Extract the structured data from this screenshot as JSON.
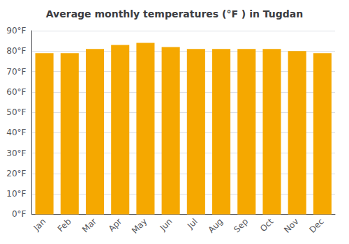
{
  "chart_data": {
    "type": "bar",
    "title": "Average monthly temperatures (°F ) in Tugdan",
    "categories": [
      "Jan",
      "Feb",
      "Mar",
      "Apr",
      "May",
      "Jun",
      "Jul",
      "Aug",
      "Sep",
      "Oct",
      "Nov",
      "Dec"
    ],
    "values": [
      79,
      79,
      81,
      83,
      84,
      82,
      81,
      81,
      81,
      81,
      80,
      79
    ],
    "color": "#F5A800",
    "ylim": [
      0,
      90
    ],
    "yticks": [
      {
        "value": 0,
        "label": "0°F"
      },
      {
        "value": 10,
        "label": "10°F"
      },
      {
        "value": 20,
        "label": "20°F"
      },
      {
        "value": 30,
        "label": "30°F"
      },
      {
        "value": 40,
        "label": "40°F"
      },
      {
        "value": 50,
        "label": "50°F"
      },
      {
        "value": 60,
        "label": "60°F"
      },
      {
        "value": 70,
        "label": "70°F"
      },
      {
        "value": 80,
        "label": "80°F"
      },
      {
        "value": 90,
        "label": "90°F"
      }
    ],
    "grid": true
  }
}
